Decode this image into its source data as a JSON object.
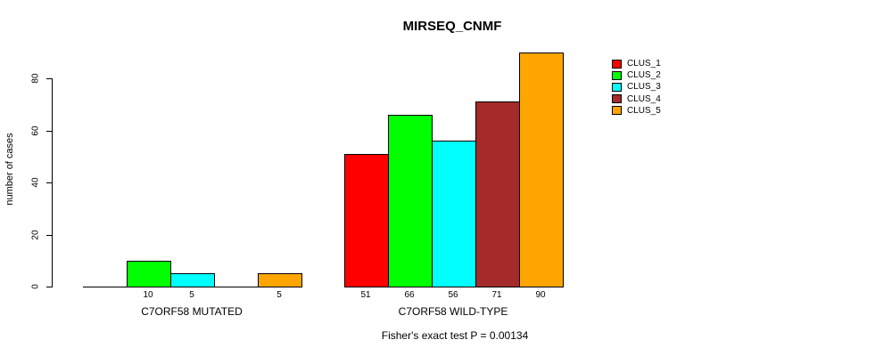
{
  "chart_data": {
    "type": "bar",
    "title": "MIRSEQ_CNMF",
    "ylabel": "number of cases",
    "ylim": [
      0,
      90
    ],
    "yticks": [
      0,
      20,
      40,
      60,
      80
    ],
    "grid": false,
    "legend_position": "topright",
    "series": [
      {
        "name": "CLUS_1",
        "color": "#FF0000"
      },
      {
        "name": "CLUS_2",
        "color": "#00FF00"
      },
      {
        "name": "CLUS_3",
        "color": "#00FFFF"
      },
      {
        "name": "CLUS_4",
        "color": "#A52A2A"
      },
      {
        "name": "CLUS_5",
        "color": "#FFA500"
      }
    ],
    "groups": [
      {
        "label": "C7ORF58 MUTATED",
        "values": [
          0,
          10,
          5,
          0,
          5
        ]
      },
      {
        "label": "C7ORF58 WILD-TYPE",
        "values": [
          51,
          66,
          56,
          71,
          90
        ]
      }
    ],
    "annotation": "Fisher's exact test P = 0.00134"
  }
}
